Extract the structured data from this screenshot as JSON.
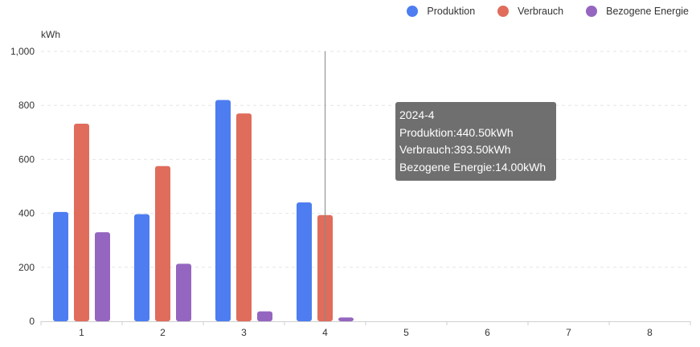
{
  "chart_data": {
    "type": "bar",
    "ylabel": "kWh",
    "xlabel": "",
    "ylim": [
      0,
      1000
    ],
    "yticks": [
      0,
      200,
      400,
      600,
      800,
      1000
    ],
    "ytick_labels": [
      "0",
      "200",
      "400",
      "600",
      "800",
      "1,000"
    ],
    "categories": [
      "1",
      "2",
      "3",
      "4",
      "5",
      "6",
      "7",
      "8"
    ],
    "series": [
      {
        "name": "Produktion",
        "color": "#4d7df0",
        "values": [
          405,
          397,
          820,
          440.5,
          null,
          null,
          null,
          null
        ]
      },
      {
        "name": "Verbrauch",
        "color": "#e06c5c",
        "values": [
          732,
          575,
          770,
          393.5,
          null,
          null,
          null,
          null
        ]
      },
      {
        "name": "Bezogene Energie",
        "color": "#9566c0",
        "values": [
          330,
          213,
          37,
          14,
          null,
          null,
          null,
          null
        ]
      }
    ],
    "grid": true,
    "legend_position": "top-right",
    "highlight_category": "4"
  },
  "tooltip": {
    "title": "2024-4",
    "lines": [
      "Produktion:440.50kWh",
      "Verbrauch:393.50kWh",
      "Bezogene Energie:14.00kWh"
    ]
  }
}
